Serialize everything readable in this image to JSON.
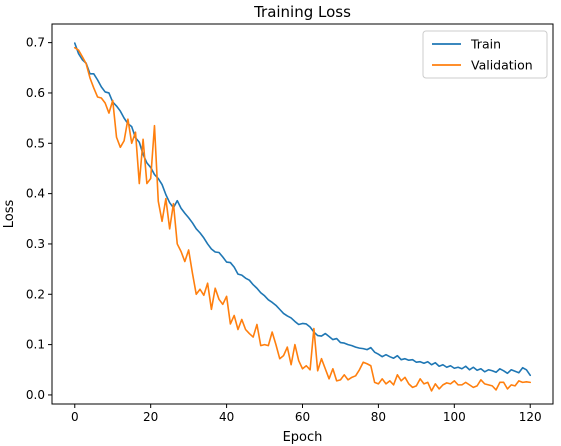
{
  "chart_data": {
    "type": "line",
    "title": "Training Loss",
    "xlabel": "Epoch",
    "ylabel": "Loss",
    "xlim": [
      -6,
      126
    ],
    "ylim": [
      -0.018,
      0.737
    ],
    "xticks": [
      0,
      20,
      40,
      60,
      80,
      100,
      120
    ],
    "yticks": [
      0.0,
      0.1,
      0.2,
      0.3,
      0.4,
      0.5,
      0.6,
      0.7
    ],
    "grid": false,
    "legend": {
      "position": "top-right"
    },
    "series": [
      {
        "name": "Train",
        "color": "#1f77b4",
        "x": [
          0,
          1,
          2,
          3,
          4,
          5,
          6,
          7,
          8,
          9,
          10,
          11,
          12,
          13,
          14,
          15,
          16,
          17,
          18,
          19,
          20,
          21,
          22,
          23,
          24,
          25,
          26,
          27,
          28,
          29,
          30,
          31,
          32,
          33,
          34,
          35,
          36,
          37,
          38,
          39,
          40,
          41,
          42,
          43,
          44,
          45,
          46,
          47,
          48,
          49,
          50,
          51,
          52,
          53,
          54,
          55,
          56,
          57,
          58,
          59,
          60,
          61,
          62,
          63,
          64,
          65,
          66,
          67,
          68,
          69,
          70,
          71,
          72,
          73,
          74,
          75,
          76,
          77,
          78,
          79,
          80,
          81,
          82,
          83,
          84,
          85,
          86,
          87,
          88,
          89,
          90,
          91,
          92,
          93,
          94,
          95,
          96,
          97,
          98,
          99,
          100,
          101,
          102,
          103,
          104,
          105,
          106,
          107,
          108,
          109,
          110,
          111,
          112,
          113,
          114,
          115,
          116,
          117,
          118,
          119,
          120
        ],
        "values": [
          0.699,
          0.678,
          0.666,
          0.659,
          0.638,
          0.638,
          0.626,
          0.612,
          0.602,
          0.6,
          0.582,
          0.574,
          0.564,
          0.55,
          0.539,
          0.533,
          0.511,
          0.502,
          0.478,
          0.461,
          0.452,
          0.438,
          0.43,
          0.418,
          0.398,
          0.382,
          0.372,
          0.386,
          0.371,
          0.361,
          0.352,
          0.342,
          0.33,
          0.322,
          0.312,
          0.3,
          0.29,
          0.284,
          0.283,
          0.274,
          0.264,
          0.263,
          0.254,
          0.24,
          0.238,
          0.232,
          0.228,
          0.219,
          0.212,
          0.203,
          0.197,
          0.189,
          0.184,
          0.178,
          0.17,
          0.162,
          0.157,
          0.153,
          0.146,
          0.14,
          0.142,
          0.141,
          0.135,
          0.125,
          0.118,
          0.117,
          0.122,
          0.116,
          0.11,
          0.112,
          0.104,
          0.103,
          0.1,
          0.098,
          0.095,
          0.093,
          0.092,
          0.09,
          0.094,
          0.085,
          0.081,
          0.076,
          0.08,
          0.076,
          0.073,
          0.078,
          0.07,
          0.072,
          0.069,
          0.07,
          0.065,
          0.066,
          0.063,
          0.066,
          0.06,
          0.064,
          0.057,
          0.06,
          0.055,
          0.058,
          0.053,
          0.055,
          0.052,
          0.057,
          0.05,
          0.055,
          0.049,
          0.052,
          0.046,
          0.05,
          0.048,
          0.045,
          0.052,
          0.048,
          0.043,
          0.05,
          0.047,
          0.044,
          0.054,
          0.05,
          0.039
        ]
      },
      {
        "name": "Validation",
        "color": "#ff7f0e",
        "x": [
          0,
          1,
          2,
          3,
          4,
          5,
          6,
          7,
          8,
          9,
          10,
          11,
          12,
          13,
          14,
          15,
          16,
          17,
          18,
          19,
          20,
          21,
          22,
          23,
          24,
          25,
          26,
          27,
          28,
          29,
          30,
          31,
          32,
          33,
          34,
          35,
          36,
          37,
          38,
          39,
          40,
          41,
          42,
          43,
          44,
          45,
          46,
          47,
          48,
          49,
          50,
          51,
          52,
          53,
          54,
          55,
          56,
          57,
          58,
          59,
          60,
          61,
          62,
          63,
          64,
          65,
          66,
          67,
          68,
          69,
          70,
          71,
          72,
          73,
          74,
          75,
          76,
          77,
          78,
          79,
          80,
          81,
          82,
          83,
          84,
          85,
          86,
          87,
          88,
          89,
          90,
          91,
          92,
          93,
          94,
          95,
          96,
          97,
          98,
          99,
          100,
          101,
          102,
          103,
          104,
          105,
          106,
          107,
          108,
          109,
          110,
          111,
          112,
          113,
          114,
          115,
          116,
          117,
          118,
          119,
          120
        ],
        "values": [
          0.69,
          0.685,
          0.672,
          0.658,
          0.63,
          0.61,
          0.592,
          0.59,
          0.58,
          0.56,
          0.585,
          0.512,
          0.492,
          0.505,
          0.548,
          0.5,
          0.522,
          0.42,
          0.508,
          0.42,
          0.43,
          0.535,
          0.385,
          0.345,
          0.39,
          0.33,
          0.38,
          0.3,
          0.285,
          0.265,
          0.288,
          0.242,
          0.2,
          0.21,
          0.198,
          0.222,
          0.17,
          0.212,
          0.19,
          0.18,
          0.196,
          0.141,
          0.158,
          0.13,
          0.15,
          0.13,
          0.122,
          0.115,
          0.14,
          0.098,
          0.1,
          0.098,
          0.125,
          0.1,
          0.072,
          0.078,
          0.095,
          0.06,
          0.1,
          0.068,
          0.052,
          0.058,
          0.05,
          0.132,
          0.048,
          0.072,
          0.052,
          0.032,
          0.052,
          0.028,
          0.03,
          0.04,
          0.03,
          0.035,
          0.038,
          0.05,
          0.065,
          0.062,
          0.058,
          0.025,
          0.022,
          0.032,
          0.022,
          0.028,
          0.02,
          0.04,
          0.028,
          0.035,
          0.022,
          0.015,
          0.018,
          0.032,
          0.022,
          0.025,
          0.008,
          0.022,
          0.012,
          0.02,
          0.024,
          0.022,
          0.028,
          0.02,
          0.02,
          0.025,
          0.02,
          0.015,
          0.018,
          0.03,
          0.022,
          0.02,
          0.018,
          0.01,
          0.025,
          0.025,
          0.012,
          0.02,
          0.018,
          0.028,
          0.025,
          0.026,
          0.025
        ]
      }
    ]
  }
}
